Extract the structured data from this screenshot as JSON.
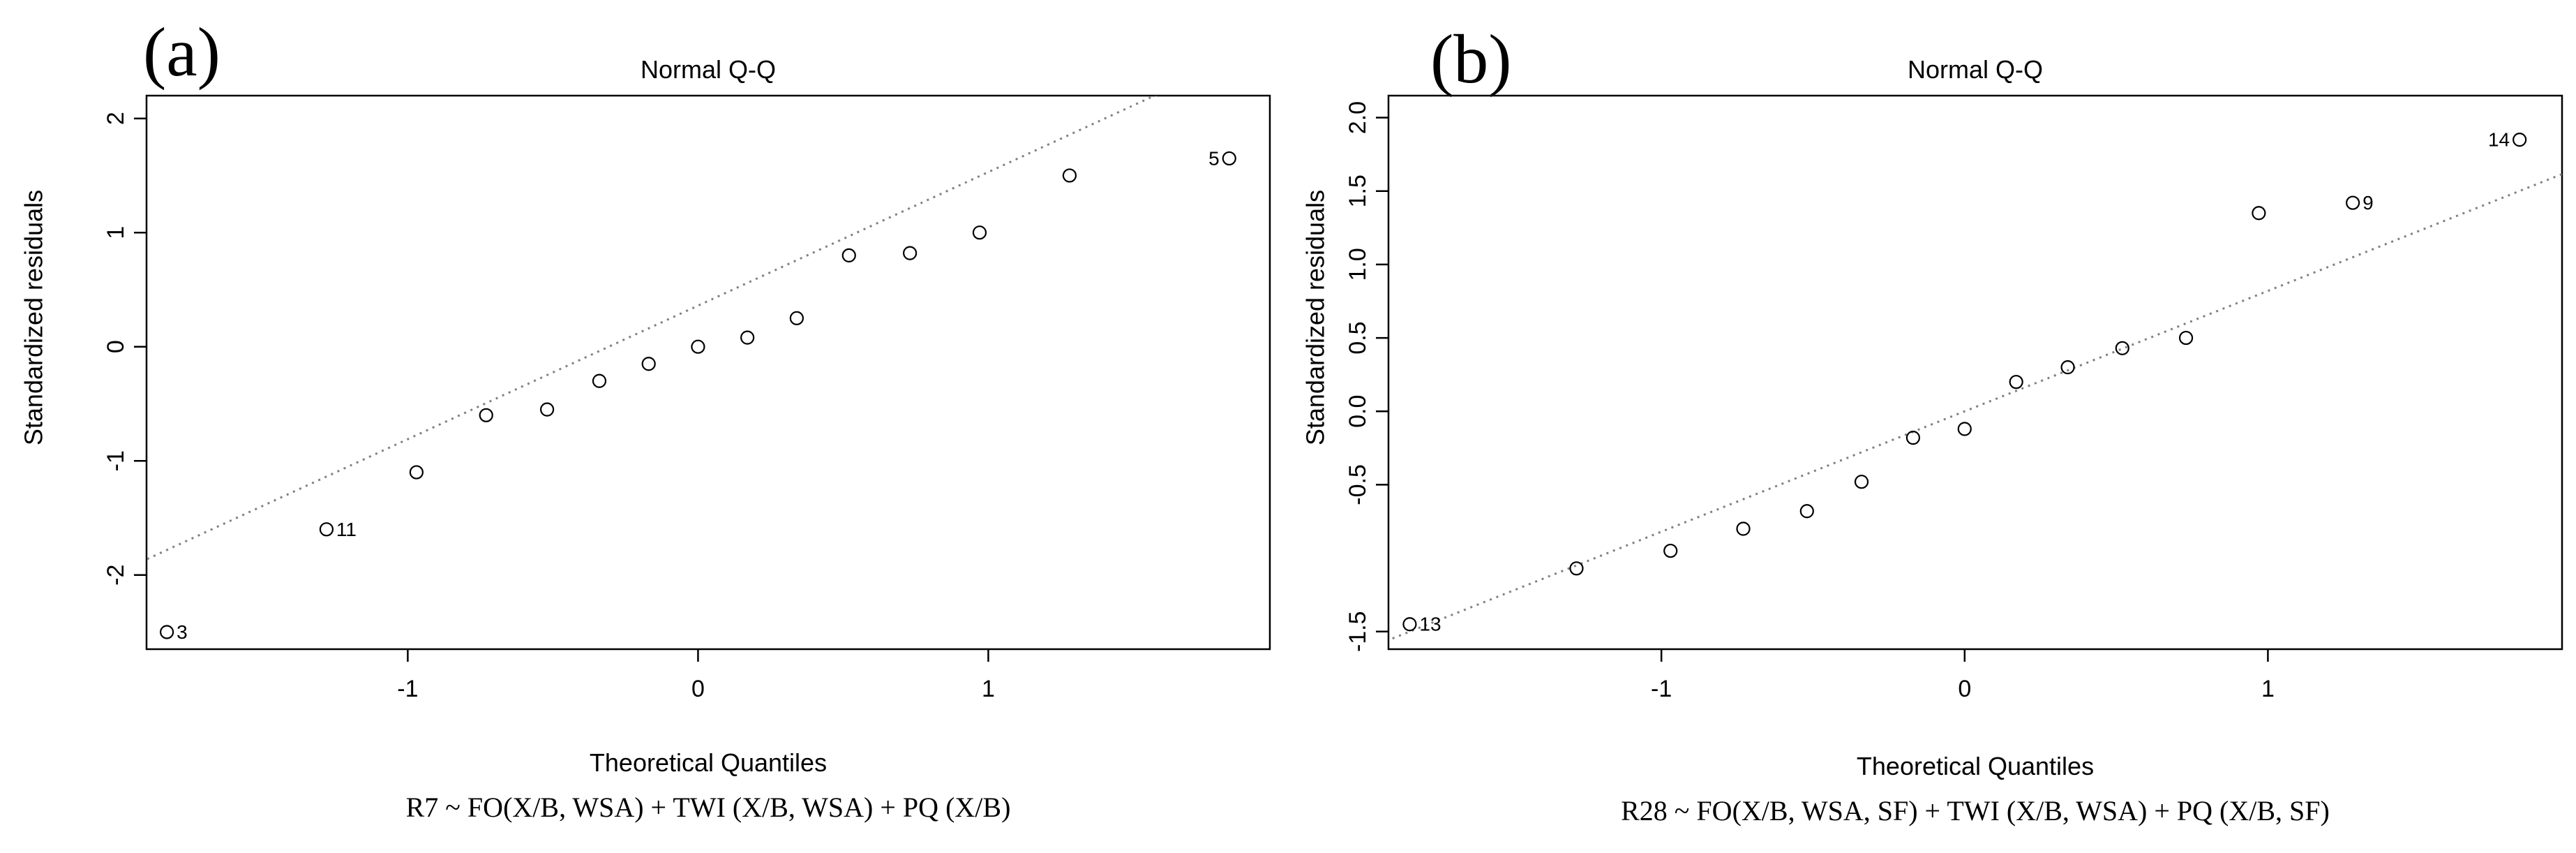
{
  "chart_data": [
    {
      "panel": "(a)",
      "type": "scatter",
      "title": "Normal Q-Q",
      "xlabel": "Theoretical Quantiles",
      "ylabel": "Standardized residuals",
      "caption": "R7 ~ FO(X/B, WSA) + TWI (X/B, WSA) + PQ (X/B)",
      "xlim": [
        -1.9,
        1.97
      ],
      "ylim": [
        -2.65,
        2.2
      ],
      "xticks": [
        -1,
        0,
        1
      ],
      "xtick_labels": [
        "-1",
        "0",
        "1"
      ],
      "yticks": [
        -2,
        -1,
        0,
        1,
        2
      ],
      "ytick_labels": [
        "-2",
        "-1",
        "0",
        "1",
        "2"
      ],
      "grid": false,
      "reference_line": {
        "intercept": 0.36,
        "slope": 1.17
      },
      "points": [
        {
          "x": -1.83,
          "y": -2.5,
          "label": "3"
        },
        {
          "x": -1.28,
          "y": -1.6,
          "label": "11"
        },
        {
          "x": -0.97,
          "y": -1.1,
          "label": ""
        },
        {
          "x": -0.73,
          "y": -0.6,
          "label": ""
        },
        {
          "x": -0.52,
          "y": -0.55,
          "label": ""
        },
        {
          "x": -0.34,
          "y": -0.3,
          "label": ""
        },
        {
          "x": -0.17,
          "y": -0.15,
          "label": ""
        },
        {
          "x": 0.0,
          "y": 0.0,
          "label": ""
        },
        {
          "x": 0.17,
          "y": 0.08,
          "label": ""
        },
        {
          "x": 0.34,
          "y": 0.25,
          "label": ""
        },
        {
          "x": 0.52,
          "y": 0.8,
          "label": ""
        },
        {
          "x": 0.73,
          "y": 0.82,
          "label": ""
        },
        {
          "x": 0.97,
          "y": 1.0,
          "label": ""
        },
        {
          "x": 1.28,
          "y": 1.5,
          "label": ""
        },
        {
          "x": 1.83,
          "y": 1.65,
          "label": "5"
        }
      ]
    },
    {
      "panel": "(b)",
      "type": "scatter",
      "title": "Normal Q-Q",
      "xlabel": "Theoretical Quantiles",
      "ylabel": "Standardized residuals",
      "caption": "R28 ~ FO(X/B, WSA, SF) + TWI (X/B, WSA) + PQ (X/B, SF)",
      "xlim": [
        -1.9,
        1.97
      ],
      "ylim": [
        -1.62,
        2.15
      ],
      "xticks": [
        -1,
        0,
        1
      ],
      "xtick_labels": [
        "-1",
        "0",
        "1"
      ],
      "yticks": [
        -1.5,
        -0.5,
        0.0,
        0.5,
        1.0,
        1.5,
        2.0
      ],
      "ytick_labels": [
        "-1.5",
        "-0.5",
        "0.0",
        "0.5",
        "1.0",
        "1.5",
        "2.0"
      ],
      "grid": false,
      "reference_line": {
        "intercept": 0.0,
        "slope": 0.82
      },
      "points": [
        {
          "x": -1.83,
          "y": -1.45,
          "label": "13"
        },
        {
          "x": -1.28,
          "y": -1.07,
          "label": ""
        },
        {
          "x": -0.97,
          "y": -0.95,
          "label": ""
        },
        {
          "x": -0.73,
          "y": -0.8,
          "label": ""
        },
        {
          "x": -0.52,
          "y": -0.68,
          "label": ""
        },
        {
          "x": -0.34,
          "y": -0.48,
          "label": ""
        },
        {
          "x": -0.17,
          "y": -0.18,
          "label": ""
        },
        {
          "x": 0.0,
          "y": -0.12,
          "label": ""
        },
        {
          "x": 0.17,
          "y": 0.2,
          "label": ""
        },
        {
          "x": 0.34,
          "y": 0.3,
          "label": ""
        },
        {
          "x": 0.52,
          "y": 0.43,
          "label": ""
        },
        {
          "x": 0.73,
          "y": 0.5,
          "label": ""
        },
        {
          "x": 0.97,
          "y": 1.35,
          "label": ""
        },
        {
          "x": 1.28,
          "y": 1.42,
          "label": "9"
        },
        {
          "x": 1.83,
          "y": 1.85,
          "label": "14"
        }
      ]
    }
  ]
}
